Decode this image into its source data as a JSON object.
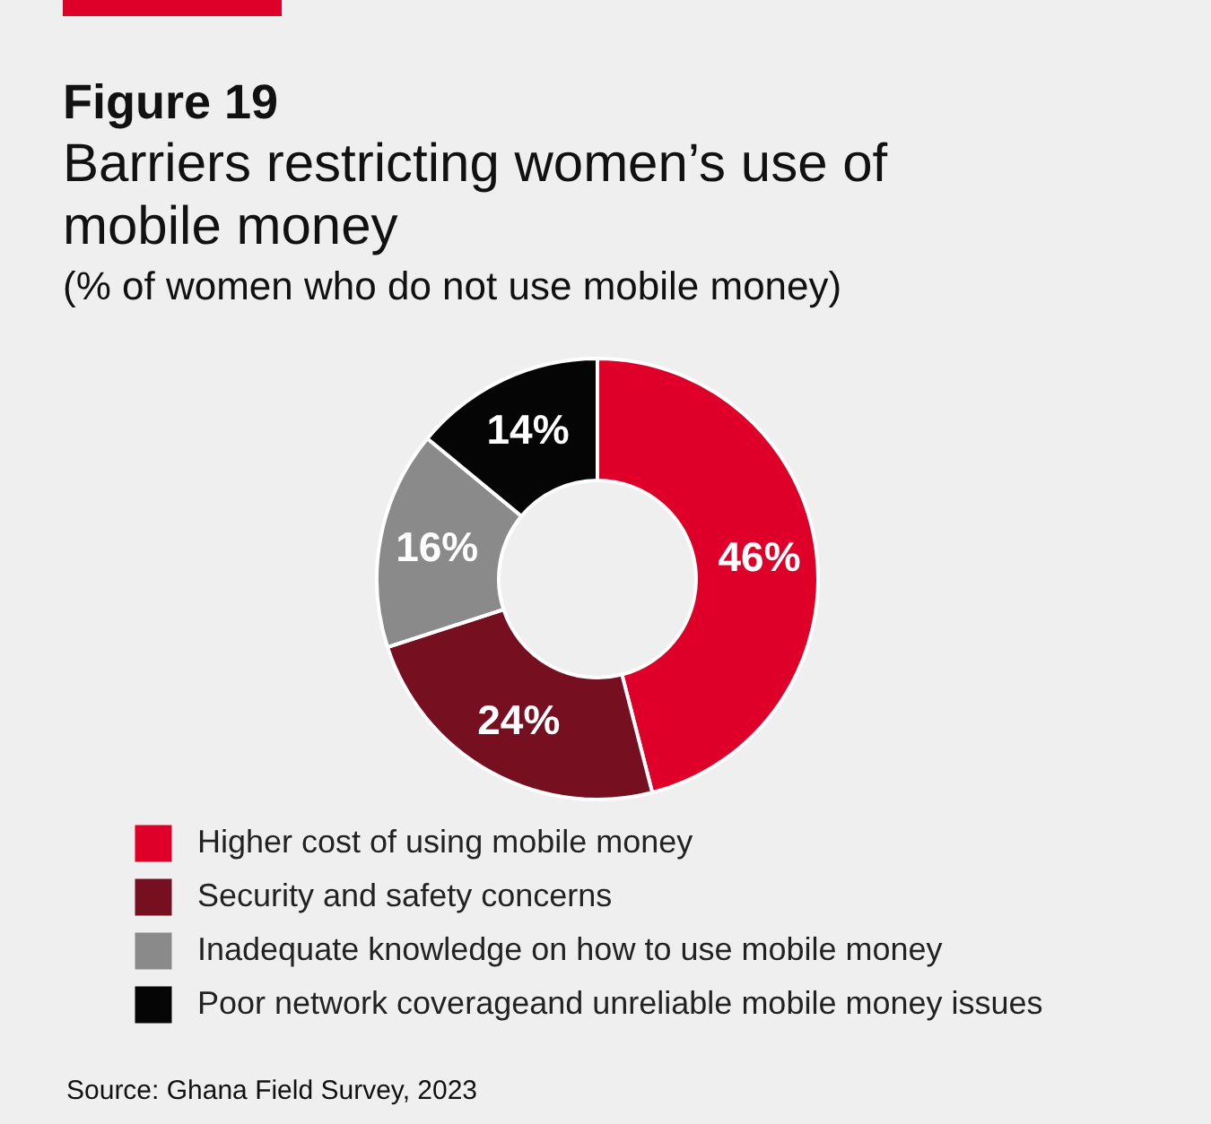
{
  "chart_data": {
    "type": "donut",
    "title": "Figure 19",
    "subtitle": "Barriers restricting women’s use of mobile money\n(% of women who do not use mobile money)",
    "categories": [
      "Higher cost of using mobile money",
      "Security and safety concerns",
      "Inadequate knowledge on how to use mobile money",
      "Poor network coverageand unreliable mobile money issues"
    ],
    "values": [
      46,
      24,
      16,
      14
    ],
    "colors": [
      "#df0029",
      "#760f20",
      "#8a8a8a",
      "#050505"
    ],
    "value_labels": [
      "46%",
      "24%",
      "16%",
      "14%"
    ],
    "legend": "bottom",
    "annotations": [
      "Source: Ghana Field Survey, 2023"
    ]
  }
}
